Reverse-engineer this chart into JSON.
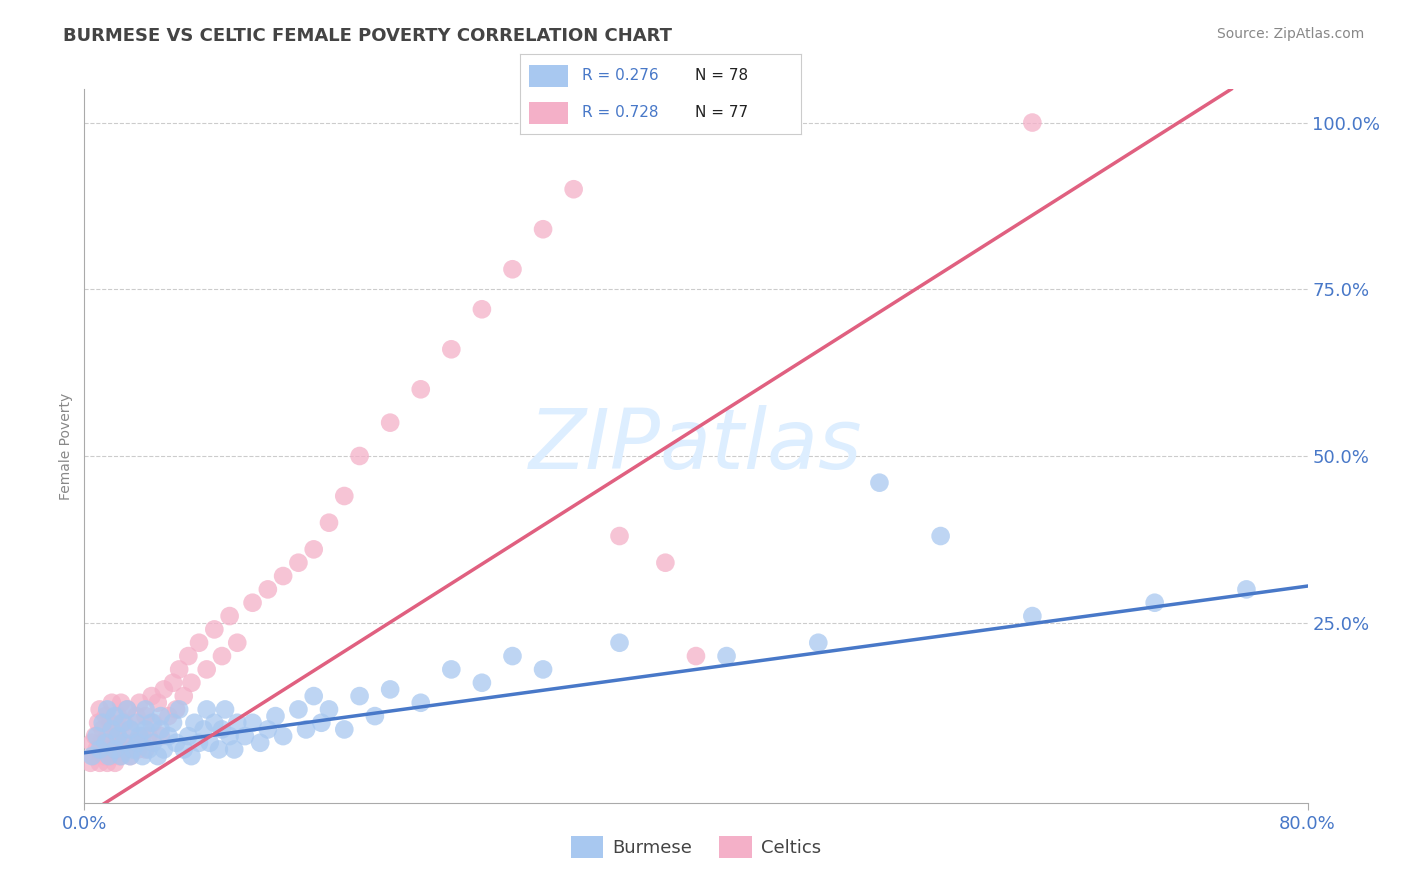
{
  "title": "BURMESE VS CELTIC FEMALE POVERTY CORRELATION CHART",
  "source_text": "Source: ZipAtlas.com",
  "ylabel": "Female Poverty",
  "xlim": [
    0.0,
    0.8
  ],
  "ylim": [
    -0.02,
    1.05
  ],
  "ytick_vals": [
    0.25,
    0.5,
    0.75,
    1.0
  ],
  "ytick_labels": [
    "25.0%",
    "50.0%",
    "75.0%",
    "100.0%"
  ],
  "xtick_vals": [
    0.0,
    0.8
  ],
  "xtick_labels": [
    "0.0%",
    "80.0%"
  ],
  "burmese_R": 0.276,
  "burmese_N": 78,
  "celtics_R": 0.728,
  "celtics_N": 77,
  "burmese_color": "#a8c8f0",
  "celtics_color": "#f4b0c8",
  "burmese_line_color": "#4878c8",
  "celtics_line_color": "#e06080",
  "burmese_line_x0": 0.0,
  "burmese_line_y0": 0.055,
  "burmese_line_x1": 0.8,
  "burmese_line_y1": 0.305,
  "celtics_line_x0": 0.0,
  "celtics_line_y0": -0.04,
  "celtics_line_x1": 0.75,
  "celtics_line_y1": 1.05,
  "tick_color": "#4878c8",
  "axis_color": "#aaaaaa",
  "grid_color": "#cccccc",
  "title_color": "#444444",
  "source_color": "#888888",
  "ylabel_color": "#888888",
  "watermark_color": "#ddeeff",
  "background_color": "#ffffff",
  "burmese_x": [
    0.005,
    0.008,
    0.01,
    0.012,
    0.014,
    0.015,
    0.016,
    0.018,
    0.02,
    0.02,
    0.022,
    0.024,
    0.025,
    0.026,
    0.028,
    0.03,
    0.03,
    0.032,
    0.034,
    0.035,
    0.036,
    0.038,
    0.04,
    0.04,
    0.042,
    0.044,
    0.045,
    0.048,
    0.05,
    0.05,
    0.052,
    0.055,
    0.058,
    0.06,
    0.062,
    0.065,
    0.068,
    0.07,
    0.072,
    0.075,
    0.078,
    0.08,
    0.082,
    0.085,
    0.088,
    0.09,
    0.092,
    0.095,
    0.098,
    0.1,
    0.105,
    0.11,
    0.115,
    0.12,
    0.125,
    0.13,
    0.14,
    0.145,
    0.15,
    0.155,
    0.16,
    0.17,
    0.18,
    0.19,
    0.2,
    0.22,
    0.24,
    0.26,
    0.28,
    0.3,
    0.35,
    0.42,
    0.48,
    0.52,
    0.56,
    0.62,
    0.7,
    0.76
  ],
  "burmese_y": [
    0.05,
    0.08,
    0.06,
    0.1,
    0.07,
    0.12,
    0.05,
    0.09,
    0.06,
    0.11,
    0.08,
    0.05,
    0.1,
    0.07,
    0.12,
    0.05,
    0.09,
    0.06,
    0.1,
    0.07,
    0.08,
    0.05,
    0.09,
    0.12,
    0.06,
    0.1,
    0.07,
    0.05,
    0.09,
    0.11,
    0.06,
    0.08,
    0.1,
    0.07,
    0.12,
    0.06,
    0.08,
    0.05,
    0.1,
    0.07,
    0.09,
    0.12,
    0.07,
    0.1,
    0.06,
    0.09,
    0.12,
    0.08,
    0.06,
    0.1,
    0.08,
    0.1,
    0.07,
    0.09,
    0.11,
    0.08,
    0.12,
    0.09,
    0.14,
    0.1,
    0.12,
    0.09,
    0.14,
    0.11,
    0.15,
    0.13,
    0.18,
    0.16,
    0.2,
    0.18,
    0.22,
    0.2,
    0.22,
    0.46,
    0.38,
    0.26,
    0.28,
    0.3
  ],
  "celtics_x": [
    0.004,
    0.005,
    0.006,
    0.007,
    0.008,
    0.009,
    0.01,
    0.01,
    0.011,
    0.012,
    0.013,
    0.014,
    0.015,
    0.015,
    0.016,
    0.017,
    0.018,
    0.018,
    0.019,
    0.02,
    0.02,
    0.021,
    0.022,
    0.022,
    0.023,
    0.024,
    0.025,
    0.026,
    0.027,
    0.028,
    0.03,
    0.03,
    0.032,
    0.034,
    0.035,
    0.036,
    0.038,
    0.04,
    0.04,
    0.042,
    0.044,
    0.045,
    0.048,
    0.05,
    0.052,
    0.055,
    0.058,
    0.06,
    0.062,
    0.065,
    0.068,
    0.07,
    0.075,
    0.08,
    0.085,
    0.09,
    0.095,
    0.1,
    0.11,
    0.12,
    0.13,
    0.14,
    0.15,
    0.16,
    0.17,
    0.18,
    0.2,
    0.22,
    0.24,
    0.26,
    0.28,
    0.3,
    0.32,
    0.35,
    0.38,
    0.4,
    0.62
  ],
  "celtics_y": [
    0.04,
    0.07,
    0.05,
    0.08,
    0.06,
    0.1,
    0.04,
    0.12,
    0.07,
    0.09,
    0.05,
    0.11,
    0.04,
    0.08,
    0.06,
    0.1,
    0.05,
    0.13,
    0.07,
    0.04,
    0.09,
    0.06,
    0.11,
    0.08,
    0.05,
    0.13,
    0.07,
    0.1,
    0.06,
    0.12,
    0.05,
    0.09,
    0.07,
    0.11,
    0.06,
    0.13,
    0.08,
    0.06,
    0.11,
    0.08,
    0.14,
    0.1,
    0.13,
    0.08,
    0.15,
    0.11,
    0.16,
    0.12,
    0.18,
    0.14,
    0.2,
    0.16,
    0.22,
    0.18,
    0.24,
    0.2,
    0.26,
    0.22,
    0.28,
    0.3,
    0.32,
    0.34,
    0.36,
    0.4,
    0.44,
    0.5,
    0.55,
    0.6,
    0.66,
    0.72,
    0.78,
    0.84,
    0.9,
    0.38,
    0.34,
    0.2,
    1.0
  ]
}
